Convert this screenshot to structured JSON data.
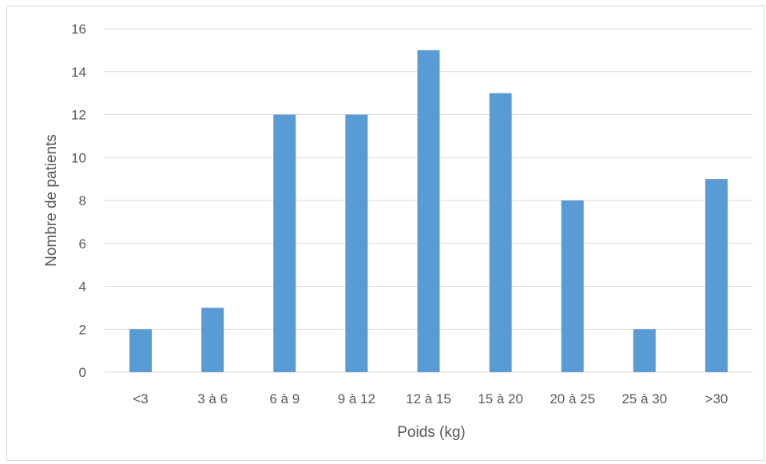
{
  "chart_data": {
    "type": "bar",
    "title": "",
    "xlabel": "Poids (kg)",
    "ylabel": "Nombre de patients",
    "categories": [
      "<3",
      "3 à 6",
      "6 à 9",
      "9 à 12",
      "12 à 15",
      "15 à 20",
      "20 à 25",
      "25 à 30",
      ">30"
    ],
    "values": [
      2,
      3,
      12,
      12,
      15,
      13,
      8,
      2,
      9
    ],
    "yticks": [
      "0",
      "2",
      "4",
      "6",
      "8",
      "10",
      "12",
      "14",
      "16"
    ],
    "ylim": [
      0,
      16
    ],
    "grid": true,
    "legend": "none",
    "bar_color": "#5b9bd5",
    "grid_color": "#d9d9d9",
    "text_color": "#595959"
  }
}
